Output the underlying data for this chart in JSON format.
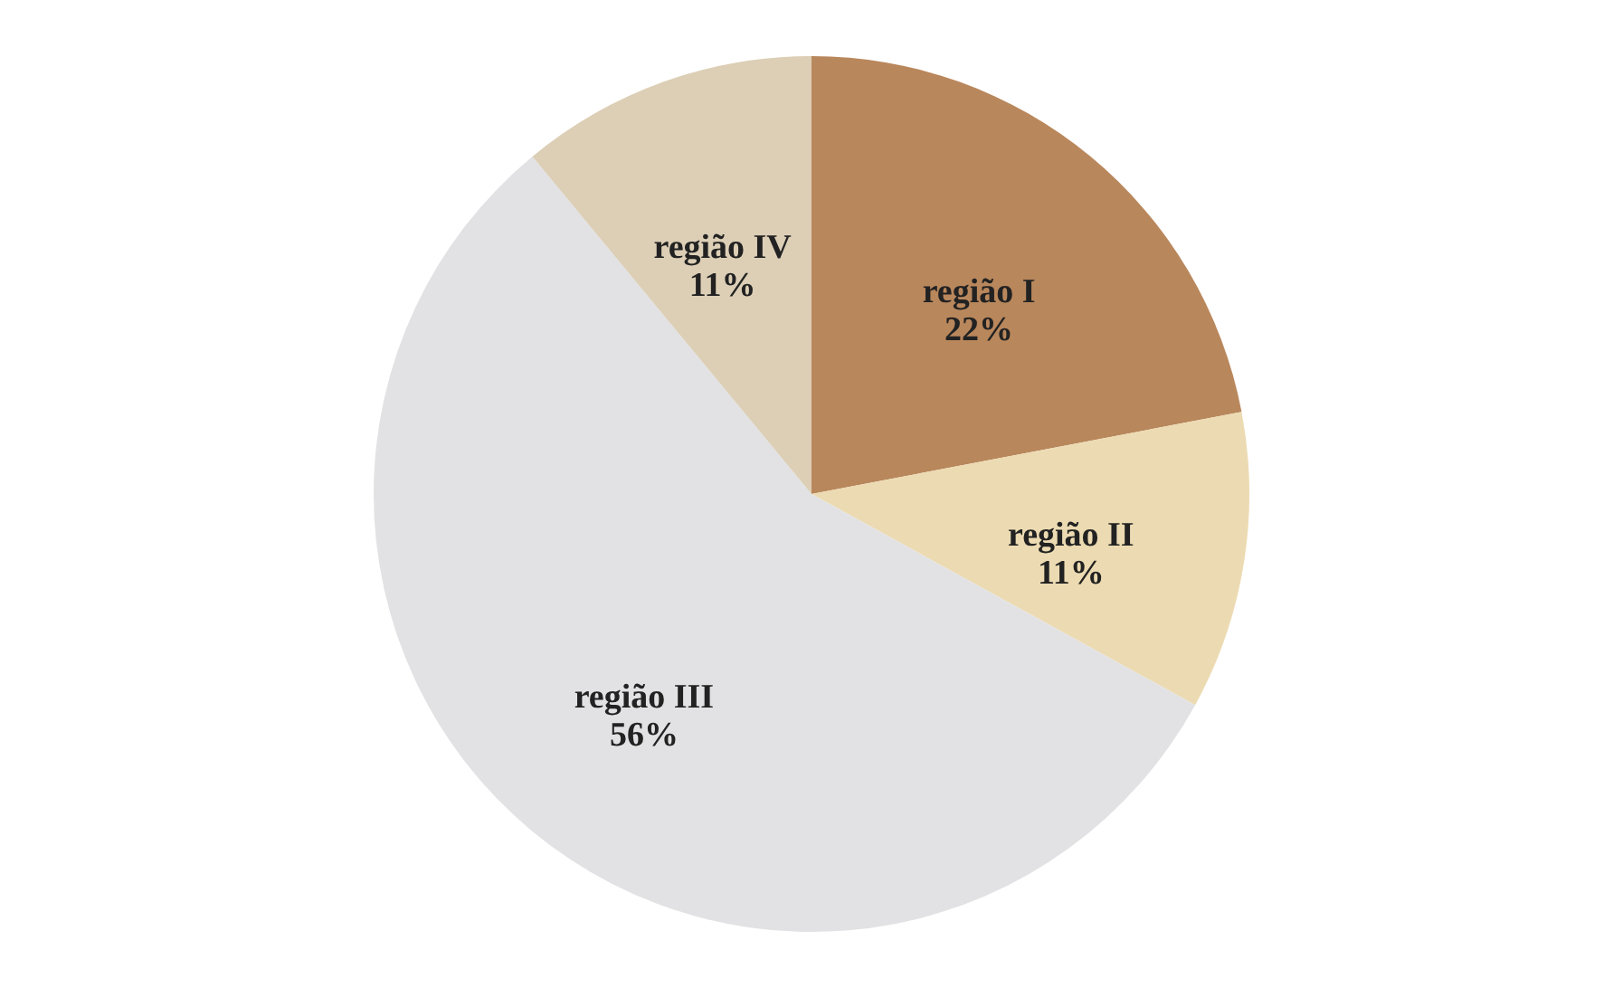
{
  "chart_data": {
    "type": "pie",
    "categories": [
      "região I",
      "região II",
      "região III",
      "região IV"
    ],
    "values": [
      22,
      11,
      56,
      11
    ],
    "value_labels": [
      "22%",
      "11%",
      "56%",
      "11%"
    ],
    "colors": [
      "#b9875c",
      "#ecdbb2",
      "#e2e2e4",
      "#dccfb6"
    ],
    "legend": false
  }
}
